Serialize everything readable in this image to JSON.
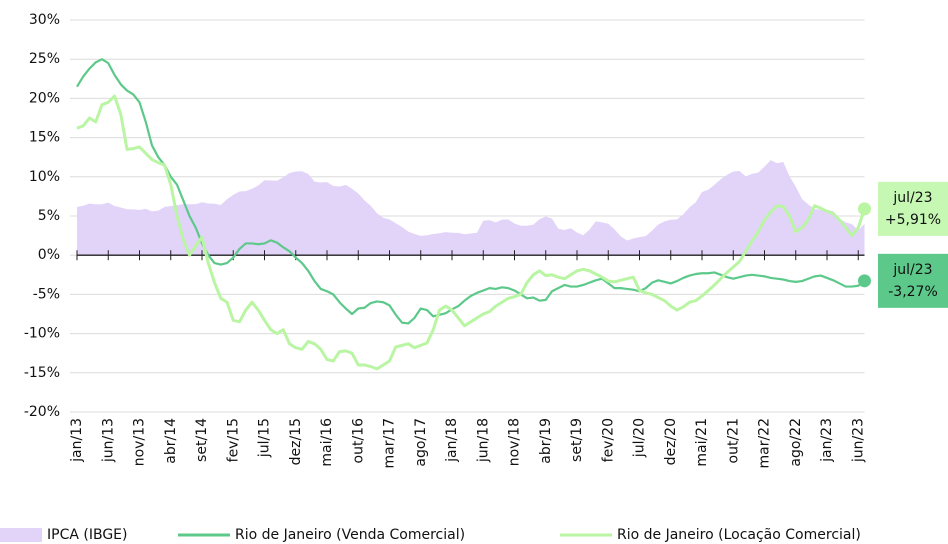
{
  "chart_data": {
    "type": "line",
    "categories": [
      "jan/13",
      null,
      null,
      null,
      null,
      "jun/13",
      null,
      null,
      null,
      null,
      "nov/13",
      null,
      null,
      null,
      null,
      "abr/14",
      null,
      null,
      null,
      null,
      "set/14",
      null,
      null,
      null,
      null,
      "fev/15",
      null,
      null,
      null,
      null,
      "jul/15",
      null,
      null,
      null,
      null,
      "dez/15",
      null,
      null,
      null,
      null,
      "mai/16",
      null,
      null,
      null,
      null,
      "out/16",
      null,
      null,
      null,
      null,
      "mar/17",
      null,
      null,
      null,
      null,
      "ago/17",
      null,
      null,
      null,
      null,
      "jan/18",
      null,
      null,
      null,
      null,
      "jun/18",
      null,
      null,
      null,
      null,
      "nov/18",
      null,
      null,
      null,
      null,
      "abr/19",
      null,
      null,
      null,
      null,
      "set/19",
      null,
      null,
      null,
      null,
      "fev/20",
      null,
      null,
      null,
      null,
      "jul/20",
      null,
      null,
      null,
      null,
      "dez/20",
      null,
      null,
      null,
      null,
      "mai/21",
      null,
      null,
      null,
      null,
      "out/21",
      null,
      null,
      null,
      null,
      "mar/22",
      null,
      null,
      null,
      null,
      "ago/22",
      null,
      null,
      null,
      null,
      "jan/23",
      null,
      null,
      null,
      null,
      "jun/23",
      null
    ],
    "series": [
      {
        "name": "IPCA (IBGE)",
        "style": "area",
        "color": "#e2d3f9",
        "values": [
          6.15,
          6.31,
          6.59,
          6.49,
          6.5,
          6.7,
          6.27,
          6.09,
          5.86,
          5.84,
          5.77,
          5.91,
          5.59,
          5.68,
          6.15,
          6.28,
          6.37,
          6.52,
          6.5,
          6.51,
          6.75,
          6.59,
          6.56,
          6.41,
          7.14,
          7.7,
          8.13,
          8.17,
          8.47,
          8.89,
          9.56,
          9.53,
          9.49,
          9.93,
          10.48,
          10.67,
          10.71,
          10.36,
          9.39,
          9.28,
          9.32,
          8.84,
          8.74,
          8.97,
          8.48,
          7.87,
          6.99,
          6.29,
          5.35,
          4.76,
          4.57,
          4.08,
          3.6,
          3.0,
          2.71,
          2.46,
          2.54,
          2.7,
          2.8,
          2.95,
          2.86,
          2.84,
          2.68,
          2.76,
          2.86,
          4.39,
          4.48,
          4.19,
          4.53,
          4.56,
          4.05,
          3.75,
          3.78,
          3.89,
          4.58,
          4.94,
          4.66,
          3.37,
          3.22,
          3.43,
          2.89,
          2.54,
          3.27,
          4.31,
          4.19,
          4.01,
          3.3,
          2.4,
          1.88,
          2.13,
          2.31,
          2.44,
          3.14,
          3.92,
          4.31,
          4.52,
          4.56,
          5.2,
          6.1,
          6.76,
          8.06,
          8.35,
          8.99,
          9.68,
          10.25,
          10.67,
          10.74,
          10.06,
          10.38,
          10.54,
          11.3,
          12.13,
          11.73,
          11.89,
          10.07,
          8.73,
          7.17,
          6.47,
          5.9,
          5.79,
          5.77,
          5.6,
          4.65,
          4.18,
          3.94,
          3.16,
          3.99
        ]
      },
      {
        "name": "Rio de Janeiro (Venda Comercial)",
        "style": "line",
        "color": "#5cc98a",
        "values": [
          21.5,
          22.8,
          23.8,
          24.6,
          25,
          24.5,
          23,
          21.8,
          21,
          20.5,
          19.5,
          17,
          14,
          12.5,
          11.5,
          10,
          9,
          7,
          5,
          3.5,
          1.5,
          0,
          -1,
          -1.2,
          -1,
          -0.3,
          0.8,
          1.5,
          1.5,
          1.4,
          1.5,
          1.9,
          1.6,
          1,
          0.5,
          -0.3,
          -1,
          -2,
          -3.3,
          -4.3,
          -4.6,
          -5,
          -6,
          -6.8,
          -7.5,
          -6.8,
          -6.7,
          -6.1,
          -5.9,
          -6,
          -6.4,
          -7.6,
          -8.6,
          -8.7,
          -8,
          -6.8,
          -7,
          -7.8,
          -7.6,
          -7.4,
          -6.9,
          -6.5,
          -5.8,
          -5.2,
          -4.8,
          -4.5,
          -4.2,
          -4.3,
          -4.1,
          -4.2,
          -4.5,
          -5,
          -5.5,
          -5.4,
          -5.8,
          -5.7,
          -4.6,
          -4.2,
          -3.8,
          -4,
          -4,
          -3.8,
          -3.5,
          -3.2,
          -3,
          -3.6,
          -4.2,
          -4.2,
          -4.3,
          -4.4,
          -4.6,
          -4.2,
          -3.5,
          -3.2,
          -3.4,
          -3.6,
          -3.3,
          -2.9,
          -2.6,
          -2.4,
          -2.3,
          -2.3,
          -2.2,
          -2.5,
          -2.8,
          -3,
          -2.8,
          -2.6,
          -2.5,
          -2.6,
          -2.7,
          -2.9,
          -3,
          -3.1,
          -3.3,
          -3.4,
          -3.3,
          -3,
          -2.7,
          -2.6,
          -2.9,
          -3.2,
          -3.6,
          -4,
          -4,
          -3.9,
          -3.27
        ],
        "end_label": {
          "date": "jul/23",
          "value_label": "-3,27%"
        },
        "label_color": "#5cc98a"
      },
      {
        "name": "Rio de Janeiro (Locação Comercial)",
        "style": "line",
        "color": "#b9f5a2",
        "values": [
          16.2,
          16.5,
          17.5,
          17,
          19.2,
          19.5,
          20.3,
          18,
          13.5,
          13.6,
          13.8,
          13,
          12.2,
          11.8,
          11.5,
          9,
          5,
          2,
          0,
          1.2,
          2.3,
          -1,
          -3.5,
          -5.5,
          -6,
          -8.3,
          -8.5,
          -7,
          -6,
          -7,
          -8.3,
          -9.5,
          -10,
          -9.5,
          -11.3,
          -11.8,
          -12,
          -11,
          -11.3,
          -12,
          -13.3,
          -13.5,
          -12.3,
          -12.2,
          -12.5,
          -14,
          -14,
          -14.2,
          -14.5,
          -14,
          -13.5,
          -11.7,
          -11.5,
          -11.3,
          -11.8,
          -11.5,
          -11.2,
          -9.5,
          -7,
          -6.5,
          -7,
          -8,
          -9,
          -8.5,
          -8,
          -7.5,
          -7.2,
          -6.5,
          -6,
          -5.5,
          -5.3,
          -5,
          -3.5,
          -2.5,
          -2,
          -2.6,
          -2.5,
          -2.8,
          -3,
          -2.5,
          -2,
          -1.8,
          -2,
          -2.4,
          -2.8,
          -3.3,
          -3.4,
          -3.2,
          -3,
          -2.8,
          -4.5,
          -4.8,
          -5,
          -5.4,
          -5.8,
          -6.5,
          -7,
          -6.6,
          -6,
          -5.8,
          -5.2,
          -4.5,
          -3.8,
          -3,
          -2.2,
          -1.5,
          -0.8,
          0.5,
          1.8,
          3,
          4.5,
          5.5,
          6.3,
          6.2,
          5,
          3,
          3.5,
          4.5,
          6.3,
          6,
          5.6,
          5.3,
          4.5,
          3.5,
          2.5,
          3.5,
          5.91
        ],
        "end_label": {
          "date": "jul/23",
          "value_label": "+5,91%"
        },
        "label_color": "#c6f8b4"
      }
    ],
    "ylim": [
      -20,
      30
    ],
    "yticks": [
      {
        "value": -20,
        "label": "-20%"
      },
      {
        "value": -15,
        "label": "-15%"
      },
      {
        "value": -10,
        "label": "-10%"
      },
      {
        "value": -5,
        "label": "-5%"
      },
      {
        "value": 0,
        "label": "0%"
      },
      {
        "value": 5,
        "label": "5%"
      },
      {
        "value": 10,
        "label": "10%"
      },
      {
        "value": 15,
        "label": "15%"
      },
      {
        "value": 20,
        "label": "20%"
      },
      {
        "value": 25,
        "label": "25%"
      },
      {
        "value": 30,
        "label": "30%"
      }
    ],
    "grid": true,
    "legend": "bottom"
  }
}
